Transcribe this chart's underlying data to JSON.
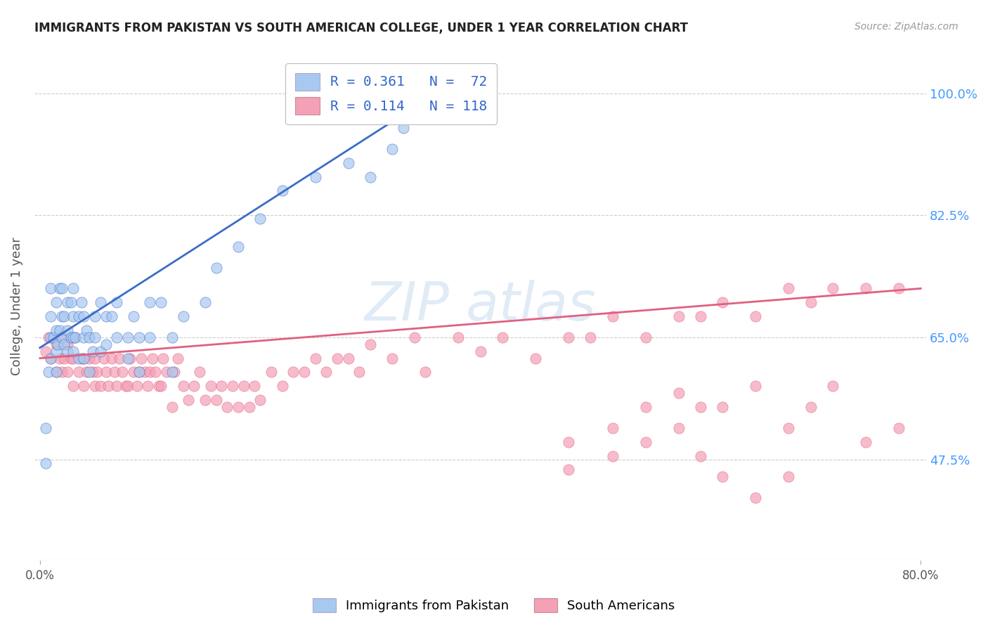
{
  "title": "IMMIGRANTS FROM PAKISTAN VS SOUTH AMERICAN COLLEGE, UNDER 1 YEAR CORRELATION CHART",
  "source": "Source: ZipAtlas.com",
  "ylabel": "College, Under 1 year",
  "xlim": [
    -0.005,
    0.805
  ],
  "ylim": [
    0.33,
    1.06
  ],
  "ytick_values": [
    0.475,
    0.65,
    0.825,
    1.0
  ],
  "ytick_labels": [
    "47.5%",
    "65.0%",
    "82.5%",
    "100.0%"
  ],
  "xtick_values": [
    0.0,
    0.8
  ],
  "xtick_labels": [
    "0.0%",
    "80.0%"
  ],
  "color_blue": "#A8C8F0",
  "color_pink": "#F4A0B5",
  "line_blue": "#3B6CC8",
  "line_pink": "#E06080",
  "legend_label1": "R = 0.361   N =  72",
  "legend_label2": "R = 0.114   N = 118",
  "bottom_label1": "Immigrants from Pakistan",
  "bottom_label2": "South Americans",
  "pak_x": [
    0.005,
    0.005,
    0.008,
    0.01,
    0.01,
    0.01,
    0.01,
    0.012,
    0.015,
    0.015,
    0.015,
    0.015,
    0.016,
    0.018,
    0.018,
    0.02,
    0.02,
    0.02,
    0.022,
    0.022,
    0.025,
    0.025,
    0.025,
    0.028,
    0.028,
    0.03,
    0.03,
    0.03,
    0.03,
    0.032,
    0.035,
    0.035,
    0.038,
    0.04,
    0.04,
    0.04,
    0.042,
    0.045,
    0.045,
    0.048,
    0.05,
    0.05,
    0.055,
    0.055,
    0.06,
    0.06,
    0.065,
    0.07,
    0.07,
    0.08,
    0.08,
    0.085,
    0.09,
    0.09,
    0.1,
    0.1,
    0.11,
    0.12,
    0.12,
    0.13,
    0.15,
    0.16,
    0.18,
    0.2,
    0.22,
    0.25,
    0.28,
    0.3,
    0.32,
    0.33,
    0.35,
    0.38
  ],
  "pak_y": [
    0.47,
    0.52,
    0.6,
    0.62,
    0.65,
    0.68,
    0.72,
    0.65,
    0.6,
    0.63,
    0.66,
    0.7,
    0.64,
    0.66,
    0.72,
    0.65,
    0.68,
    0.72,
    0.64,
    0.68,
    0.63,
    0.66,
    0.7,
    0.65,
    0.7,
    0.63,
    0.65,
    0.68,
    0.72,
    0.65,
    0.62,
    0.68,
    0.7,
    0.62,
    0.65,
    0.68,
    0.66,
    0.6,
    0.65,
    0.63,
    0.65,
    0.68,
    0.63,
    0.7,
    0.64,
    0.68,
    0.68,
    0.65,
    0.7,
    0.62,
    0.65,
    0.68,
    0.6,
    0.65,
    0.65,
    0.7,
    0.7,
    0.6,
    0.65,
    0.68,
    0.7,
    0.75,
    0.78,
    0.82,
    0.86,
    0.88,
    0.9,
    0.88,
    0.92,
    0.95,
    0.97,
    1.0
  ],
  "sam_x": [
    0.005,
    0.008,
    0.01,
    0.012,
    0.015,
    0.015,
    0.018,
    0.02,
    0.02,
    0.022,
    0.025,
    0.025,
    0.028,
    0.03,
    0.03,
    0.032,
    0.035,
    0.038,
    0.04,
    0.04,
    0.042,
    0.045,
    0.048,
    0.05,
    0.05,
    0.052,
    0.055,
    0.058,
    0.06,
    0.062,
    0.065,
    0.068,
    0.07,
    0.072,
    0.075,
    0.078,
    0.08,
    0.082,
    0.085,
    0.088,
    0.09,
    0.092,
    0.095,
    0.098,
    0.1,
    0.102,
    0.105,
    0.108,
    0.11,
    0.112,
    0.115,
    0.12,
    0.122,
    0.125,
    0.13,
    0.135,
    0.14,
    0.145,
    0.15,
    0.155,
    0.16,
    0.165,
    0.17,
    0.175,
    0.18,
    0.185,
    0.19,
    0.195,
    0.2,
    0.21,
    0.22,
    0.23,
    0.24,
    0.25,
    0.26,
    0.27,
    0.28,
    0.29,
    0.3,
    0.32,
    0.34,
    0.35,
    0.38,
    0.4,
    0.42,
    0.45,
    0.48,
    0.5,
    0.52,
    0.55,
    0.58,
    0.6,
    0.62,
    0.65,
    0.68,
    0.7,
    0.72,
    0.75,
    0.78,
    0.48,
    0.52,
    0.55,
    0.58,
    0.6,
    0.62,
    0.65,
    0.68,
    0.7,
    0.72,
    0.75,
    0.78,
    0.48,
    0.52,
    0.55,
    0.58,
    0.6,
    0.62,
    0.65,
    0.68
  ],
  "sam_y": [
    0.63,
    0.65,
    0.62,
    0.65,
    0.6,
    0.64,
    0.62,
    0.6,
    0.65,
    0.62,
    0.6,
    0.64,
    0.62,
    0.58,
    0.62,
    0.65,
    0.6,
    0.62,
    0.58,
    0.62,
    0.6,
    0.62,
    0.6,
    0.58,
    0.62,
    0.6,
    0.58,
    0.62,
    0.6,
    0.58,
    0.62,
    0.6,
    0.58,
    0.62,
    0.6,
    0.58,
    0.58,
    0.62,
    0.6,
    0.58,
    0.6,
    0.62,
    0.6,
    0.58,
    0.6,
    0.62,
    0.6,
    0.58,
    0.58,
    0.62,
    0.6,
    0.55,
    0.6,
    0.62,
    0.58,
    0.56,
    0.58,
    0.6,
    0.56,
    0.58,
    0.56,
    0.58,
    0.55,
    0.58,
    0.55,
    0.58,
    0.55,
    0.58,
    0.56,
    0.6,
    0.58,
    0.6,
    0.6,
    0.62,
    0.6,
    0.62,
    0.62,
    0.6,
    0.64,
    0.62,
    0.65,
    0.6,
    0.65,
    0.63,
    0.65,
    0.62,
    0.65,
    0.65,
    0.68,
    0.65,
    0.68,
    0.68,
    0.7,
    0.68,
    0.72,
    0.7,
    0.72,
    0.72,
    0.72,
    0.5,
    0.52,
    0.55,
    0.57,
    0.48,
    0.55,
    0.58,
    0.52,
    0.55,
    0.58,
    0.5,
    0.52,
    0.46,
    0.48,
    0.5,
    0.52,
    0.55,
    0.45,
    0.42,
    0.45
  ],
  "pak_line_x": [
    0.0,
    0.38
  ],
  "pak_line_y": [
    0.635,
    1.02
  ],
  "sam_line_x": [
    0.0,
    0.8
  ],
  "sam_line_y": [
    0.62,
    0.72
  ]
}
